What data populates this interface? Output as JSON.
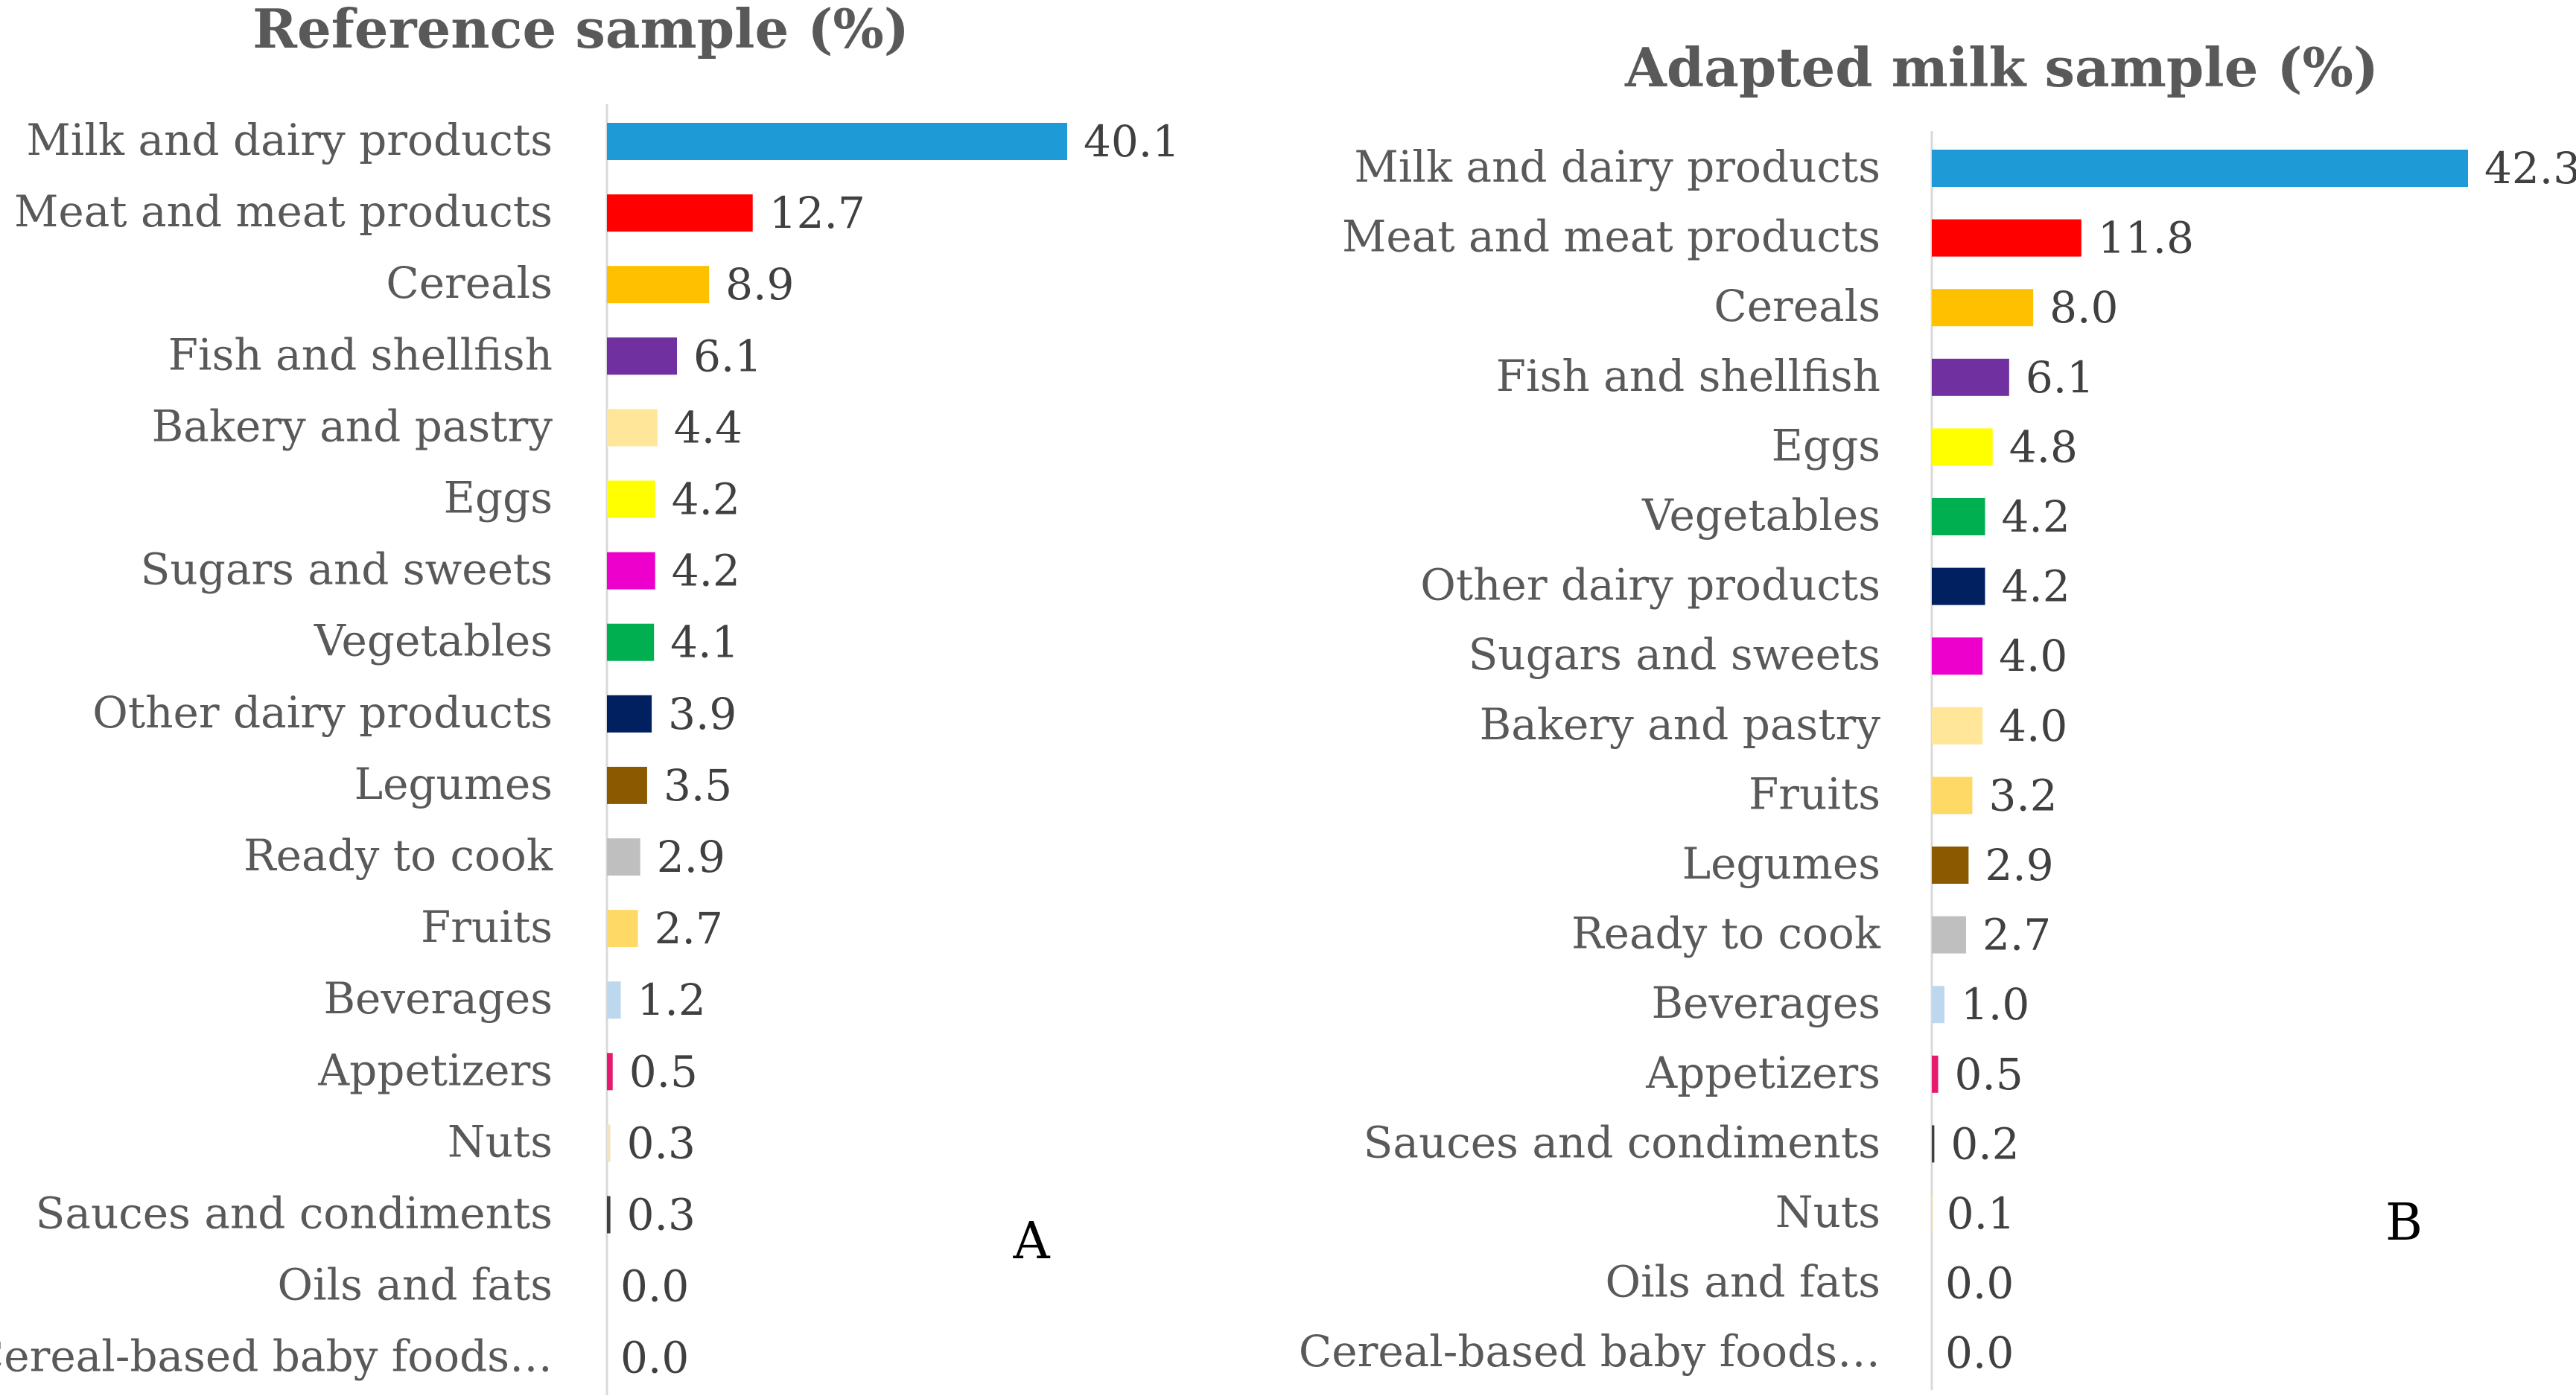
{
  "chart_data": [
    {
      "type": "bar",
      "orientation": "horizontal",
      "title": "Reference sample (%)",
      "panel_label": "A",
      "xlabel": "",
      "ylabel": "",
      "xlim": [
        0,
        40.1
      ],
      "grid": false,
      "categories": [
        "Milk and dairy products",
        "Meat and meat products",
        "Cereals",
        "Fish and shellfish",
        "Bakery and pastry",
        "Eggs",
        "Sugars and sweets",
        "Vegetables",
        "Other dairy products",
        "Legumes",
        "Ready to cook",
        "Fruits",
        "Beverages",
        "Appetizers",
        "Nuts",
        "Sauces and condiments",
        "Oils and fats",
        "Cereal-based baby foods…"
      ],
      "values": [
        40.1,
        12.7,
        8.9,
        6.1,
        4.4,
        4.2,
        4.2,
        4.1,
        3.9,
        3.5,
        2.9,
        2.7,
        1.2,
        0.5,
        0.3,
        0.3,
        0.0,
        0.0
      ],
      "labels": [
        "40.1",
        "12.7",
        "8.9",
        "6.1",
        "4.4",
        "4.2",
        "4.2",
        "4.1",
        "3.9",
        "3.5",
        "2.9",
        "2.7",
        "1.2",
        "0.5",
        "0.3",
        "0.3",
        "0.0",
        "0.0"
      ],
      "colors": [
        "#1E9BD7",
        "#FF0000",
        "#FFC000",
        "#7030A0",
        "#FFE699",
        "#FFFF00",
        "#EE00CC",
        "#00B050",
        "#002060",
        "#8B5A00",
        "#BFBFBF",
        "#FFD966",
        "#BDD7EE",
        "#E6196E",
        "#F4E3C0",
        "#404040",
        "#A0A0A0",
        "#A0A0A0"
      ]
    },
    {
      "type": "bar",
      "orientation": "horizontal",
      "title": "Adapted milk sample (%)",
      "panel_label": "B",
      "xlabel": "",
      "ylabel": "",
      "xlim": [
        0,
        42.3
      ],
      "grid": false,
      "categories": [
        "Milk and dairy products",
        "Meat and meat products",
        "Cereals",
        "Fish and shellfish",
        "Eggs",
        "Vegetables",
        "Other dairy products",
        "Sugars and sweets",
        "Bakery and pastry",
        "Fruits",
        "Legumes",
        "Ready to cook",
        "Beverages",
        "Appetizers",
        "Sauces and condiments",
        "Nuts",
        "Oils and fats",
        "Cereal-based baby foods…"
      ],
      "values": [
        42.3,
        11.8,
        8.0,
        6.1,
        4.8,
        4.2,
        4.2,
        4.0,
        4.0,
        3.2,
        2.9,
        2.7,
        1.0,
        0.5,
        0.2,
        0.1,
        0.0,
        0.0
      ],
      "labels": [
        "42.3",
        "11.8",
        "8.0",
        "6.1",
        "4.8",
        "4.2",
        "4.2",
        "4.0",
        "4.0",
        "3.2",
        "2.9",
        "2.7",
        "1.0",
        "0.5",
        "0.2",
        "0.1",
        "0.0",
        "0.0"
      ],
      "colors": [
        "#1E9BD7",
        "#FF0000",
        "#FFC000",
        "#7030A0",
        "#FFFF00",
        "#00B050",
        "#002060",
        "#EE00CC",
        "#FFE699",
        "#FFD966",
        "#8B5A00",
        "#BFBFBF",
        "#BDD7EE",
        "#E6196E",
        "#404040",
        "#F4E3C0",
        "#A0A0A0",
        "#A0A0A0"
      ]
    }
  ]
}
